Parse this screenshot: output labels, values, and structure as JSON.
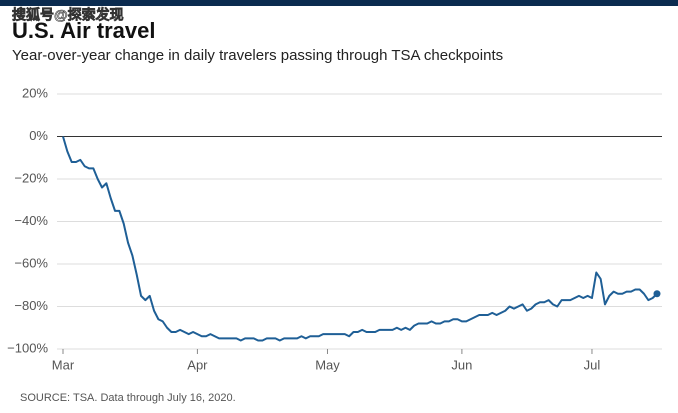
{
  "chart_data": {
    "type": "line",
    "watermark": "搜狐号@探索发现",
    "title": "U.S. Air travel",
    "subtitle": "Year-over-year change in daily travelers passing through TSA checkpoints",
    "source": "SOURCE: TSA. Data through July 16, 2020.",
    "categories": [
      "Mar",
      null,
      null,
      null,
      null,
      null,
      null,
      null,
      null,
      null,
      null,
      null,
      null,
      null,
      null,
      null,
      null,
      null,
      null,
      null,
      null,
      null,
      null,
      null,
      null,
      null,
      null,
      null,
      null,
      null,
      null,
      "Apr",
      null,
      null,
      null,
      null,
      null,
      null,
      null,
      null,
      null,
      null,
      null,
      null,
      null,
      null,
      null,
      null,
      null,
      null,
      null,
      null,
      null,
      null,
      null,
      null,
      null,
      null,
      null,
      null,
      null,
      "May",
      null,
      null,
      null,
      null,
      null,
      null,
      null,
      null,
      null,
      null,
      null,
      null,
      null,
      null,
      null,
      null,
      null,
      null,
      null,
      null,
      null,
      null,
      null,
      null,
      null,
      null,
      null,
      null,
      null,
      null,
      "Jun",
      null,
      null,
      null,
      null,
      null,
      null,
      null,
      null,
      null,
      null,
      null,
      null,
      null,
      null,
      null,
      null,
      null,
      null,
      null,
      null,
      null,
      null,
      null,
      null,
      null,
      null,
      null,
      null,
      null,
      "Jul",
      null,
      null,
      null,
      null,
      null,
      null,
      null,
      null,
      null,
      null,
      null,
      null,
      null,
      null,
      null
    ],
    "series": [
      {
        "color": "#1f5f96",
        "values": [
          0,
          -7,
          -12,
          -12,
          -11,
          -14,
          -15,
          -15,
          -20,
          -24,
          -22,
          -29,
          -35,
          -35,
          -41,
          -50,
          -56,
          -65,
          -75,
          -77,
          -75,
          -82,
          -86,
          -87,
          -90,
          -92,
          -92,
          -91,
          -92,
          -93,
          -92,
          -93,
          -94,
          -94,
          -93,
          -94,
          -95,
          -95,
          -95,
          -95,
          -95,
          -96,
          -95,
          -95,
          -95,
          -96,
          -96,
          -95,
          -95,
          -95,
          -96,
          -95,
          -95,
          -95,
          -95,
          -94,
          -95,
          -94,
          -94,
          -94,
          -93,
          -93,
          -93,
          -93,
          -93,
          -93,
          -94,
          -92,
          -92,
          -91,
          -92,
          -92,
          -92,
          -91,
          -91,
          -91,
          -91,
          -90,
          -91,
          -90,
          -91,
          -89,
          -88,
          -88,
          -88,
          -87,
          -88,
          -88,
          -87,
          -87,
          -86,
          -86,
          -87,
          -87,
          -86,
          -85,
          -84,
          -84,
          -84,
          -83,
          -84,
          -83,
          -82,
          -80,
          -81,
          -80,
          -79,
          -82,
          -81,
          -79,
          -78,
          -78,
          -77,
          -79,
          -80,
          -77,
          -77,
          -77,
          -76,
          -75,
          -76,
          -75,
          -76,
          -64,
          -67,
          -79,
          -75,
          -73,
          -74,
          -74,
          -73,
          -73,
          -72,
          -72,
          -74,
          -77,
          -76,
          -74
        ]
      }
    ],
    "ylim": [
      -100,
      20
    ],
    "yticks": [
      {
        "value": 20,
        "label": "20%"
      },
      {
        "value": 0,
        "label": "0%"
      },
      {
        "value": -20,
        "label": "−20%"
      },
      {
        "value": -40,
        "label": "−40%"
      },
      {
        "value": -60,
        "label": "−60%"
      },
      {
        "value": -80,
        "label": "−80%"
      },
      {
        "value": -100,
        "label": "−100%"
      }
    ],
    "grid": true
  }
}
